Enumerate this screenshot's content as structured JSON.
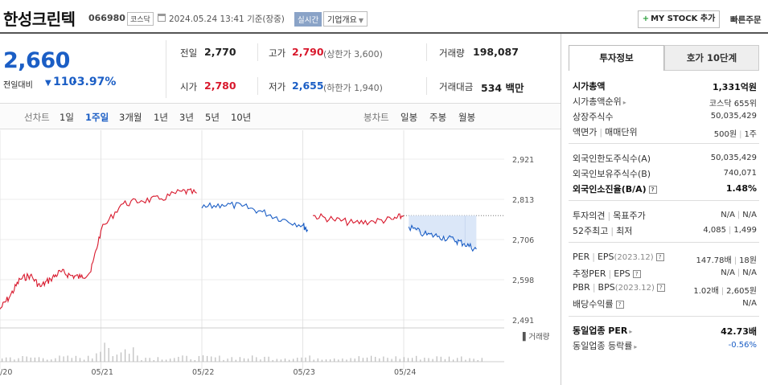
{
  "header": {
    "company": "한성크린텍",
    "code": "066980",
    "market": "코스닥",
    "datetime": "2024.05.24 13:41",
    "basis": "기준(장중)",
    "realtime": "실시간",
    "overview": "기업개요",
    "mystock": "MY STOCK 추가",
    "quick_order": "빠른주문"
  },
  "price": {
    "current": "2,660",
    "change_label": "전일대비",
    "change": "110",
    "change_pct": "-3.97%"
  },
  "quotes": {
    "prev_close_label": "전일",
    "prev_close": "2,770",
    "high_label": "고가",
    "high": "2,790",
    "upper_limit": "(상한가 3,600)",
    "volume_label": "거래량",
    "volume": "198,087",
    "open_label": "시가",
    "open": "2,780",
    "low_label": "저가",
    "low": "2,655",
    "lower_limit": "(하한가 1,940)",
    "amount_label": "거래대금",
    "amount": "534 백만"
  },
  "period_tabs": {
    "line_chart": "선차트",
    "d1": "1일",
    "w1": "1주일",
    "m3": "3개월",
    "y1": "1년",
    "y3": "3년",
    "y5": "5년",
    "y10": "10년",
    "candle_chart": "봉차트",
    "daily": "일봉",
    "weekly": "주봉",
    "monthly": "월봉"
  },
  "chart_data": {
    "type": "line",
    "y_ticks": [
      "2,921",
      "2,813",
      "2,706",
      "2,598",
      "2,491"
    ],
    "ylim": [
      2491,
      2921
    ],
    "x_ticks": [
      "05/20",
      "05/21",
      "05/22",
      "05/23",
      "05/24"
    ],
    "volume_label": "거래량",
    "reference_price": 2770,
    "series": [
      {
        "color": "#d8182c",
        "x": [
          0,
          0.1,
          0.2,
          0.3,
          0.4,
          0.5,
          0.6,
          0.7,
          0.8,
          0.9,
          1.0,
          1.2,
          1.4,
          1.6,
          1.8,
          1.95
        ],
        "values": [
          2520,
          2555,
          2600,
          2610,
          2580,
          2600,
          2620,
          2610,
          2605,
          2620,
          2730,
          2800,
          2810,
          2815,
          2835,
          2830
        ]
      },
      {
        "color": "#1b5ec5",
        "x": [
          2.0,
          2.2,
          2.4,
          2.6,
          2.8,
          3.0,
          3.05
        ],
        "values": [
          2790,
          2800,
          2795,
          2780,
          2760,
          2745,
          2730
        ]
      },
      {
        "color": "#d8182c",
        "x": [
          3.1,
          3.3,
          3.5,
          3.7,
          3.9,
          4.0
        ],
        "values": [
          2770,
          2760,
          2750,
          2755,
          2760,
          2770
        ]
      },
      {
        "color": "#1b5ec5",
        "x": [
          4.05,
          4.2,
          4.35,
          4.5,
          4.6,
          4.72
        ],
        "values": [
          2740,
          2720,
          2715,
          2705,
          2695,
          2680
        ]
      }
    ]
  },
  "invest_tabs": {
    "info": "투자정보",
    "hoga": "호가 10단계"
  },
  "invest": {
    "market_cap_label": "시가총액",
    "market_cap": "1,331억원",
    "cap_rank_label": "시가총액순위",
    "cap_rank": "코스닥 655위",
    "shares_label": "상장주식수",
    "shares": "50,035,429",
    "face_label": "액면가",
    "unit_label": "매매단위",
    "face": "500원",
    "unit": "1주",
    "foreign_limit_label": "외국인한도주식수(A)",
    "foreign_limit": "50,035,429",
    "foreign_hold_label": "외국인보유주식수(B)",
    "foreign_hold": "740,071",
    "foreign_ratio_label": "외국인소진율(B/A)",
    "foreign_ratio": "1.48%",
    "opinion_label": "투자의견",
    "target_label": "목표주가",
    "opinion": "N/A",
    "target": "N/A",
    "w52_high_label": "52주최고",
    "w52_low_label": "최저",
    "w52_high": "4,085",
    "w52_low": "1,499",
    "per_label": "PER",
    "eps_label": "EPS",
    "eps_date": "(2023.12)",
    "per": "147.78배",
    "eps": "18원",
    "est_per_label": "추정PER",
    "est_eps_label": "EPS",
    "est_per": "N/A",
    "est_eps": "N/A",
    "pbr_label": "PBR",
    "bps_label": "BPS",
    "bps_date": "(2023.12)",
    "pbr": "1.02배",
    "bps": "2,605원",
    "div_label": "배당수익률",
    "div": "N/A",
    "ind_per_label": "동일업종 PER",
    "ind_per": "42.73배",
    "ind_rate_label": "동일업종 등락률",
    "ind_rate": "-0.56%"
  }
}
